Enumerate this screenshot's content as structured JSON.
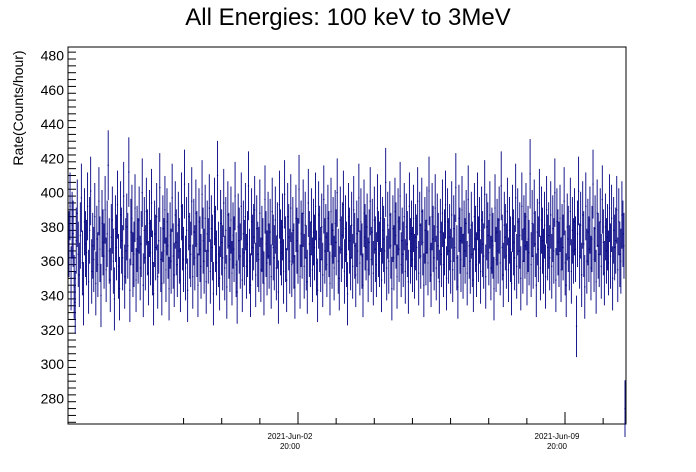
{
  "chart_data": {
    "type": "scatter",
    "title": "All Energies:  100 keV to 3MeV",
    "xlabel": "",
    "ylabel": "Rate(Counts/hour)",
    "ylim": [
      265,
      485
    ],
    "x_ticks": [
      {
        "date": "2021-Jun-02",
        "time": "20:00"
      },
      {
        "date": "2021-Jun-09",
        "time": "20:00"
      }
    ],
    "y_ticks": [
      280,
      300,
      320,
      340,
      360,
      380,
      400,
      420,
      440,
      460,
      480
    ],
    "grid": false,
    "marker_color": "#000080",
    "series": [
      {
        "values": [
          370,
          392,
          350,
          381,
          376,
          345,
          336,
          372,
          388,
          364,
          352,
          375,
          397,
          359,
          341,
          383,
          370,
          365,
          392,
          348,
          378,
          401,
          354,
          369,
          361,
          386,
          347,
          373,
          358,
          395,
          367,
          340,
          382,
          371,
          363,
          390,
          355,
          376,
          416,
          366,
          349,
          374,
          384,
          360,
          338,
          379,
          368,
          393,
          357,
          344,
          387,
          372,
          362,
          398,
          351,
          366,
          380,
          369,
          412,
          343,
          377,
          385,
          358,
          364,
          391,
          349,
          373,
          366,
          384,
          356,
          370,
          400,
          346,
          378,
          362,
          389,
          371,
          353,
          382,
          365,
          394,
          359,
          341,
          376,
          368,
          386,
          351,
          372,
          403,
          361,
          347,
          379,
          366,
          390,
          355,
          383,
          369,
          344,
          375,
          360,
          397,
          363,
          352,
          387,
          371,
          358,
          381,
          366,
          349,
          392,
          374,
          361,
          405,
          356,
          378,
          343,
          386,
          369,
          364,
          395,
          351,
          377,
          362,
          388,
          370,
          346,
          383,
          367,
          357,
          399,
          372,
          360,
          385,
          348,
          376,
          366,
          391,
          354,
          379,
          368,
          341,
          389,
          373,
          359,
          410,
          364,
          350,
          382,
          371,
          362,
          394,
          356,
          378,
          345,
          387,
          369,
          361,
          384,
          353,
          375,
          367,
          398,
          358,
          342,
          380,
          372,
          363,
          392,
          349,
          376,
          365,
          386,
          357,
          370,
          404,
          360,
          346,
          383,
          368,
          374,
          390,
          352,
          379,
          364,
          361,
          388,
          355,
          373,
          366,
          347,
          396,
          370,
          359,
          381,
          363,
          377,
          351,
          389,
          368,
          362,
          384,
          356,
          375,
          342,
          393,
          371,
          365,
          380,
          354,
          399,
          367,
          349,
          386,
          374,
          360,
          391,
          358,
          378,
          363,
          345,
          385,
          372,
          366,
          402,
          351,
          376,
          369,
          388,
          357,
          381,
          362,
          348,
          394,
          370,
          364,
          383,
          355,
          377,
          368,
          392,
          359,
          343,
          387,
          373,
          361,
          380,
          352,
          396,
          366,
          374,
          358,
          385,
          370,
          347,
          389,
          363,
          378,
          356,
          382,
          371,
          400,
          360,
          350,
          384,
          367,
          375,
          393,
          354,
          379,
          364,
          341,
          386,
          372,
          362,
          381,
          357,
          390,
          369,
          352,
          376,
          366,
          397,
          359,
          383,
          363,
          346,
          388,
          374,
          368,
          380,
          355,
          371,
          395,
          361,
          377,
          353,
          384,
          367,
          358,
          391,
          370,
          364,
          385,
          349,
          378,
          373,
          366,
          406,
          356,
          381,
          360,
          387,
          369,
          344,
          379,
          362,
          389,
          375,
          351,
          383,
          367,
          398,
          358,
          372,
          364,
          386,
          354,
          380,
          370,
          348,
          392,
          366,
          376,
          361,
          385,
          357,
          374,
          368,
          395,
          353,
          381,
          363,
          389,
          371,
          346,
          378,
          365,
          384,
          359,
          401,
          367,
          352,
          386,
          373,
          362,
          391,
          356,
          380,
          369,
          348,
          377,
          364,
          388,
          358,
          371,
          393,
          350,
          383,
          366,
          374,
          360,
          387,
          355,
          379,
          368,
          403,
          362,
          345,
          385,
          372,
          361,
          390,
          357,
          376,
          366,
          382,
          353,
          396,
          369,
          360,
          381,
          364,
          349,
          386,
          373,
          358,
          392,
          367,
          378,
          354,
          384,
          370,
          363,
          399,
          351,
          380,
          375,
          365,
          387,
          356,
          372,
          369,
          344,
          391,
          361,
          377,
          366,
          384,
          359,
          404,
          368,
          352,
          381,
          374,
          363,
          389,
          355,
          378,
          367,
          347,
          385,
          371,
          362,
          397,
          357,
          383,
          366,
          375,
          350,
          392,
          360,
          379,
          369,
          386,
          353,
          373,
          365,
          411,
          358,
          382,
          363,
          388,
          370,
          346,
          377,
          367,
          394,
          356,
          384,
          372,
          360,
          381,
          351,
          390,
          368,
          375,
          362,
          387,
          357,
          379,
          366,
          400,
          349,
          383,
          371,
          364,
          385,
          355,
          374,
          368,
          395,
          359,
          346,
          380,
          373,
          362,
          389,
          354,
          378,
          366,
          383,
          367,
          322,
          376,
          401,
          363,
          381,
          352,
          387,
          370,
          345,
          392,
          360,
          377,
          367,
          384,
          356,
          373,
          405,
          361,
          379,
          348,
          388,
          369,
          364,
          383,
          357,
          396,
          371,
          353,
          380,
          366,
          374,
          359,
          391,
          363,
          385,
          350,
          378,
          368,
          372,
          390,
          355,
          383,
          364,
          360,
          387,
          376,
          369,
          274
        ]
      }
    ]
  }
}
